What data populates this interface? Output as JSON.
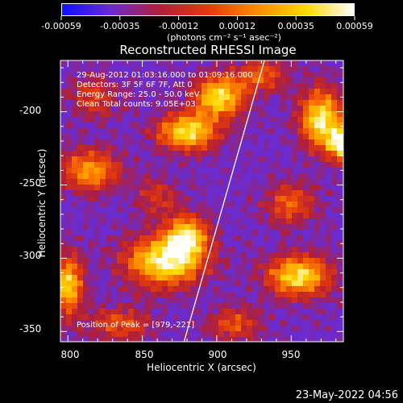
{
  "chart_data": {
    "type": "heatmap",
    "title": "Reconstructed RHESSI Image",
    "xlabel": "Heliocentric X (arcsec)",
    "ylabel": "Heliocentric Y (arcsec)",
    "xlim": [
      795,
      985
    ],
    "ylim": [
      -357,
      -165
    ],
    "xticks": [
      800,
      850,
      900,
      950
    ],
    "yticks": [
      -200,
      -250,
      -300,
      -350
    ],
    "colorbar": {
      "ticks": [
        "-0.00059",
        "-0.00035",
        "-0.00012",
        "0.00012",
        "0.00035",
        "0.00059"
      ],
      "range": [
        -0.00059,
        0.00059
      ],
      "unit_label": "(photons cm⁻² s⁻¹ asec⁻²)",
      "colors": [
        "#1010ff",
        "#6a2bd0",
        "#b01f3a",
        "#e33a0c",
        "#ff8a00",
        "#ffd800",
        "#ffffff"
      ]
    },
    "annotations": {
      "time_range": "29-Aug-2012 01:03:16.000 to 01:09:16.000",
      "detectors": "Detectors: 3F 5F 6F 7F, Att 0",
      "energy": "Energy Range: 25.0 - 50.0 keV",
      "clean": "Clean     Total counts: 9.05E+03",
      "peak": "Position of Peak = [979,-221]"
    },
    "peak_position": [
      979,
      -221
    ],
    "limb_line": [
      [
        878,
        -357
      ],
      [
        932,
        -165
      ]
    ],
    "bright_sources": [
      {
        "x": 902,
        "y": -190,
        "sx": 12,
        "sy": 10,
        "amp": 1.0
      },
      {
        "x": 880,
        "y": -214,
        "sx": 14,
        "sy": 9,
        "amp": 1.0
      },
      {
        "x": 970,
        "y": -205,
        "sx": 10,
        "sy": 14,
        "amp": 1.05
      },
      {
        "x": 985,
        "y": -222,
        "sx": 7,
        "sy": 8,
        "amp": 1.1
      },
      {
        "x": 865,
        "y": -302,
        "sx": 18,
        "sy": 12,
        "amp": 1.1
      },
      {
        "x": 880,
        "y": -285,
        "sx": 10,
        "sy": 10,
        "amp": 0.9
      },
      {
        "x": 955,
        "y": -312,
        "sx": 15,
        "sy": 10,
        "amp": 1.0
      },
      {
        "x": 815,
        "y": -240,
        "sx": 14,
        "sy": 10,
        "amp": 0.75
      },
      {
        "x": 800,
        "y": -318,
        "sx": 7,
        "sy": 14,
        "amp": 0.95
      },
      {
        "x": 950,
        "y": -263,
        "sx": 12,
        "sy": 10,
        "amp": 0.55
      },
      {
        "x": 930,
        "y": -175,
        "sx": 12,
        "sy": 8,
        "amp": 0.55
      },
      {
        "x": 818,
        "y": -190,
        "sx": 12,
        "sy": 10,
        "amp": 0.45
      },
      {
        "x": 835,
        "y": -345,
        "sx": 15,
        "sy": 8,
        "amp": 0.5
      },
      {
        "x": 912,
        "y": -345,
        "sx": 12,
        "sy": 8,
        "amp": 0.5
      },
      {
        "x": 860,
        "y": -258,
        "sx": 10,
        "sy": 9,
        "amp": 0.4
      }
    ]
  },
  "footer_timestamp": "23-May-2022 04:56"
}
